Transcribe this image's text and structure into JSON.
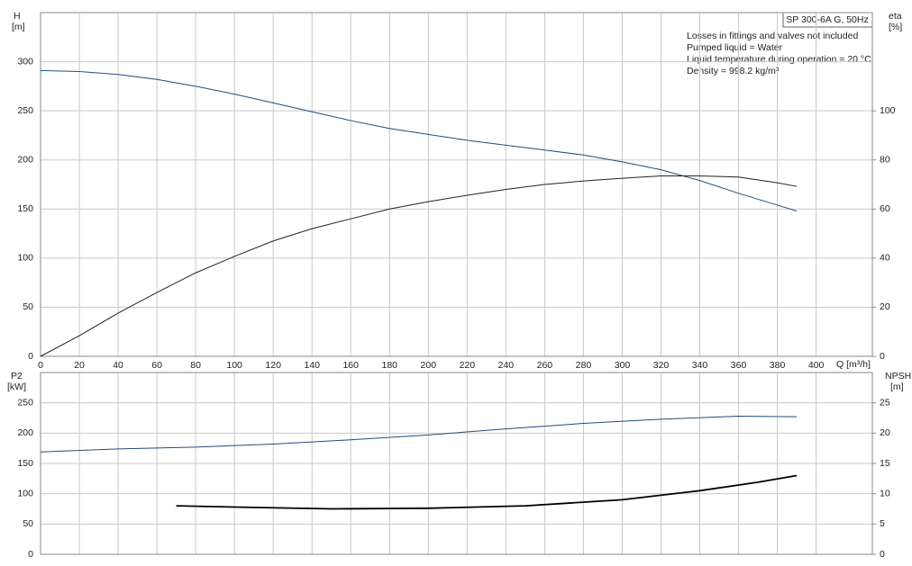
{
  "chart_data": [
    {
      "type": "line",
      "title": "SP 300-6A G, 50Hz",
      "annotations": [
        "Losses in fittings and valves not included",
        "Pumped liquid = Water",
        "Liquid temperature during operation = 20 °C",
        "Density = 998.2 kg/m³"
      ],
      "ylabel": "H",
      "yunit": "[m]",
      "y2label": "eta",
      "y2unit": "[%]",
      "xlabel": "Q [m³/h]",
      "xlim": [
        0,
        429
      ],
      "xticks": [
        0,
        20,
        40,
        60,
        80,
        100,
        120,
        140,
        160,
        180,
        200,
        220,
        240,
        260,
        280,
        300,
        320,
        340,
        360,
        380,
        400
      ],
      "ylim": [
        0,
        350
      ],
      "yticks": [
        0,
        50,
        100,
        150,
        200,
        250,
        300
      ],
      "y2lim": [
        0,
        140
      ],
      "y2ticks": [
        0,
        20,
        40,
        60,
        80,
        100
      ],
      "grid": true,
      "series": [
        {
          "color": "#1f4e79",
          "x": [
            0,
            20,
            40,
            60,
            80,
            100,
            120,
            140,
            160,
            180,
            200,
            220,
            240,
            260,
            280,
            300,
            320,
            340,
            360,
            380,
            390
          ],
          "values": [
            291,
            290,
            287,
            282,
            275,
            267,
            258,
            249,
            240,
            232,
            226,
            220,
            215,
            210,
            205,
            198,
            190,
            179,
            166,
            154,
            148
          ]
        },
        {
          "color": "#222222",
          "axis": "y2",
          "x": [
            0,
            20,
            40,
            60,
            80,
            100,
            120,
            140,
            160,
            180,
            200,
            220,
            240,
            260,
            280,
            300,
            320,
            340,
            360,
            380,
            390
          ],
          "values": [
            0,
            8.4,
            17.6,
            26,
            34,
            40.7,
            47,
            52,
            56,
            60,
            63,
            65.6,
            68,
            70,
            71.4,
            72.5,
            73.5,
            73.5,
            73,
            70.7,
            69.2
          ]
        }
      ]
    },
    {
      "type": "line",
      "ylabel": "P2",
      "yunit": "[kW]",
      "y2label": "NPSH",
      "y2unit": "[m]",
      "xlim": [
        0,
        429
      ],
      "ylim": [
        0,
        300
      ],
      "yticks": [
        0,
        50,
        100,
        150,
        200,
        250
      ],
      "y2lim": [
        0,
        30
      ],
      "y2ticks": [
        0,
        5,
        10,
        15,
        20,
        25
      ],
      "grid": true,
      "series": [
        {
          "color": "#1f4e79",
          "x": [
            0,
            40,
            80,
            120,
            160,
            200,
            240,
            280,
            320,
            360,
            390
          ],
          "values": [
            169,
            174,
            177,
            182,
            189,
            197,
            207,
            216,
            223,
            228,
            227
          ]
        },
        {
          "color": "#000000",
          "axis": "y2",
          "x": [
            70,
            100,
            150,
            200,
            250,
            300,
            340,
            370,
            390
          ],
          "values": [
            8.0,
            7.8,
            7.5,
            7.6,
            8.0,
            9.0,
            10.5,
            11.9,
            13.0
          ]
        }
      ]
    }
  ]
}
